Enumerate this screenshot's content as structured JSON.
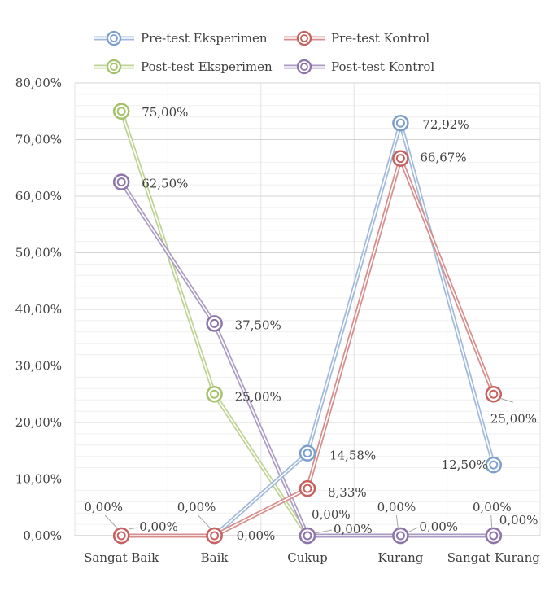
{
  "chart_data": {
    "type": "line",
    "categories": [
      "Sangat Baik",
      "Baik",
      "Cukup",
      "Kurang",
      "Sangat Kurang"
    ],
    "ylim": [
      0,
      80
    ],
    "ytick_step": 10,
    "y_tick_labels": [
      "0,00%",
      "10,00%",
      "20,00%",
      "30,00%",
      "40,00%",
      "50,00%",
      "60,00%",
      "70,00%",
      "80,00%"
    ],
    "grid": true,
    "legend_position": "top",
    "series": [
      {
        "name": "Pre-test Eksperimen",
        "color": "#6f94c8",
        "values": [
          0,
          0,
          14.58,
          72.92,
          12.5
        ],
        "labels": [
          "0,00%",
          "0,00%",
          "14,58%",
          "72,92%",
          "12,50%"
        ]
      },
      {
        "name": "Pre-test Kontrol",
        "color": "#c0504d",
        "values": [
          0,
          0,
          8.33,
          66.67,
          25
        ],
        "labels": [
          "0,00%",
          "0,00%",
          "8,33%",
          "66,67%",
          "25,00%"
        ]
      },
      {
        "name": "Post-test Eksperimen",
        "color": "#9bbb59",
        "values": [
          75,
          25,
          0,
          0,
          0
        ],
        "labels": [
          "75,00%",
          "25,00%",
          "0,00%",
          "0,00%",
          "0,00%"
        ]
      },
      {
        "name": "Post-test Kontrol",
        "color": "#8064a2",
        "values": [
          62.5,
          37.5,
          0,
          0,
          0
        ],
        "labels": [
          "62,50%",
          "37,50%",
          "0,00%",
          "0,00%",
          "0,00%"
        ]
      }
    ]
  }
}
